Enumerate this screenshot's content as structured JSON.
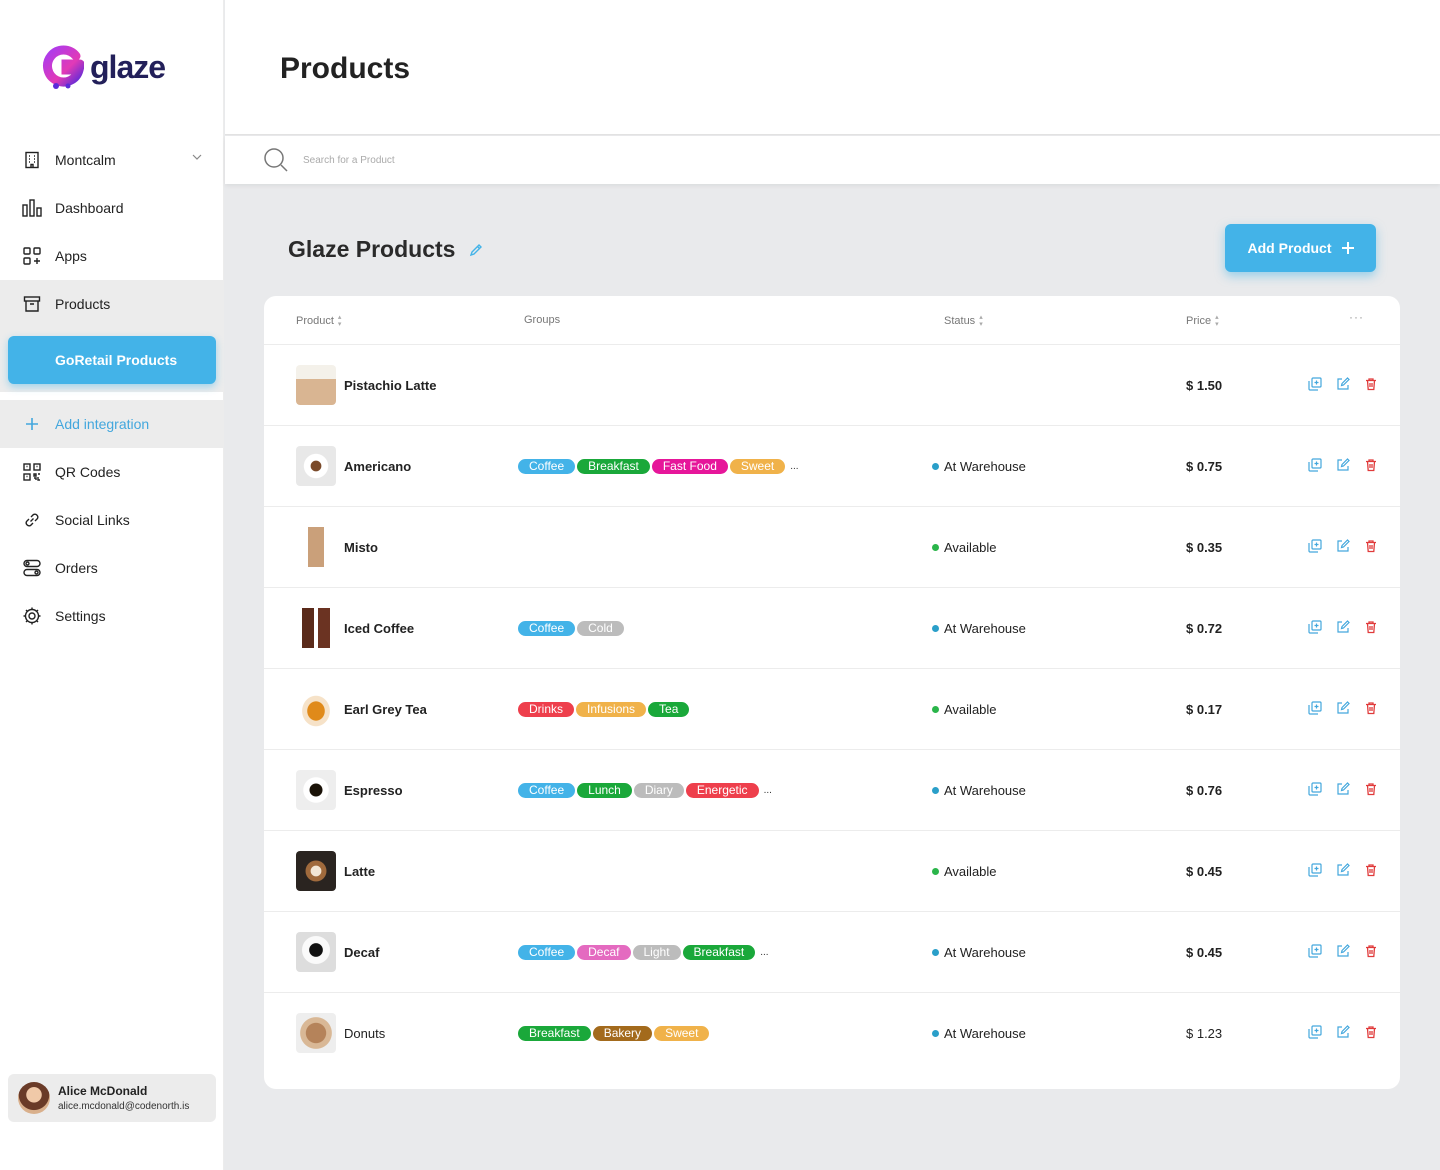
{
  "brand": {
    "name": "glaze"
  },
  "nav": {
    "store": "Montcalm",
    "dashboard": "Dashboard",
    "apps": "Apps",
    "products": "Products",
    "goretail": "GoRetail Products",
    "add_integration": "Add integration",
    "qr_codes": "QR Codes",
    "social_links": "Social Links",
    "orders": "Orders",
    "settings": "Settings"
  },
  "user": {
    "name": "Alice McDonald",
    "email": "alice.mcdonald@codenorth.is"
  },
  "header": {
    "title": "Products"
  },
  "search": {
    "placeholder": "Search for a Product"
  },
  "section": {
    "title": "Glaze Products",
    "add_button": "Add Product"
  },
  "table": {
    "columns": {
      "product": "Product",
      "groups": "Groups",
      "status": "Status",
      "price": "Price",
      "more": "···"
    },
    "rows": [
      {
        "name": "Pistachio Latte",
        "groups": [],
        "overflow": "",
        "status": "",
        "price": "$ 1.50"
      },
      {
        "name": "Americano",
        "groups": [
          "Coffee",
          "Breakfast",
          "Fast Food",
          "Sweet"
        ],
        "overflow": "...",
        "status": "At Warehouse",
        "price": "$ 0.75"
      },
      {
        "name": "Misto",
        "groups": [],
        "overflow": "",
        "status": "Available",
        "price": "$ 0.35"
      },
      {
        "name": "Iced Coffee",
        "groups": [
          "Coffee",
          "Cold"
        ],
        "overflow": "",
        "status": "At Warehouse",
        "price": "$ 0.72"
      },
      {
        "name": "Earl Grey Tea",
        "groups": [
          "Drinks",
          "Infusions",
          "Tea"
        ],
        "overflow": "",
        "status": "Available",
        "price": "$ 0.17"
      },
      {
        "name": "Espresso",
        "groups": [
          "Coffee",
          "Lunch",
          "Diary",
          "Energetic"
        ],
        "overflow": "...",
        "status": "At Warehouse",
        "price": "$ 0.76"
      },
      {
        "name": "Latte",
        "groups": [],
        "overflow": "",
        "status": "Available",
        "price": "$ 0.45"
      },
      {
        "name": "Decaf",
        "groups": [
          "Coffee",
          "Decaf",
          "Light",
          "Breakfast"
        ],
        "overflow": "...",
        "status": "At Warehouse",
        "price": "$ 0.45"
      },
      {
        "name": "Donuts",
        "groups": [
          "Breakfast",
          "Bakery",
          "Sweet"
        ],
        "overflow": "",
        "status": "At Warehouse",
        "price": "$ 1.23"
      }
    ]
  },
  "colors": {
    "accent": "#43b3e8",
    "tags": {
      "Coffee": "#43b3e8",
      "Breakfast": "#1aa83a",
      "Fast Food": "#e6169a",
      "Sweet": "#f0b24a",
      "Cold": "#bcbcbc",
      "Drinks": "#ee3f4c",
      "Infusions": "#f0b24a",
      "Tea": "#1aa83a",
      "Lunch": "#1aa83a",
      "Diary": "#bcbcbc",
      "Energetic": "#ee3f4c",
      "Decaf": "#e46ac0",
      "Light": "#bcbcbc",
      "Bakery": "#a36a1c"
    },
    "status": {
      "At Warehouse": "#2a9fc9",
      "Available": "#2ab54a"
    }
  }
}
